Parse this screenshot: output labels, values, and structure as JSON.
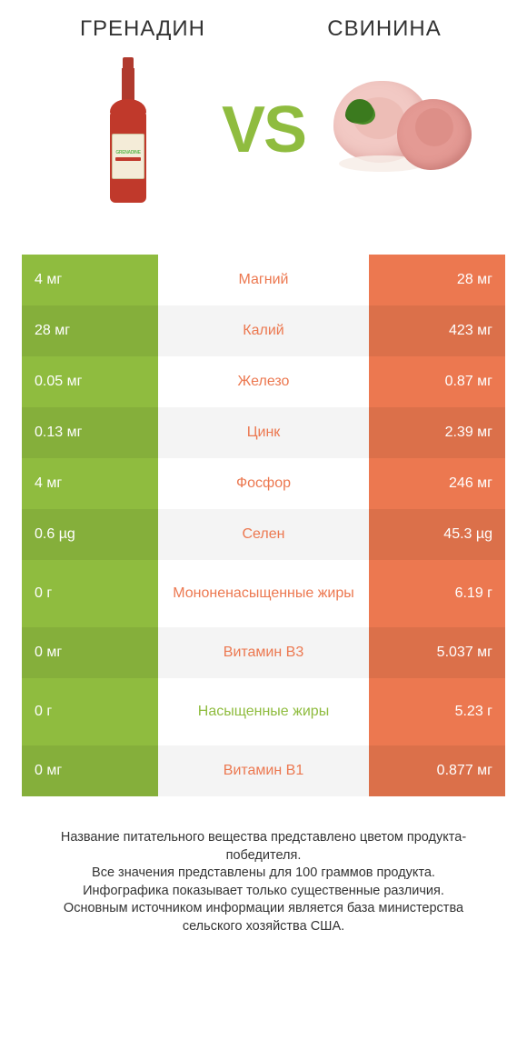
{
  "colors": {
    "green": "#8fbc3f",
    "orange": "#ec7850",
    "row_alt_darken": 0.93,
    "mid_bg": "#ffffff",
    "mid_bg_alt": "#f4f4f4",
    "vs": "#8fbc3f"
  },
  "header": {
    "left": "ГРЕНАДИН",
    "right": "СВИНИНА",
    "vs": "VS"
  },
  "fonts": {
    "header_size": 24,
    "vs_size": 72,
    "cell_size": 16,
    "footer_size": 14.5
  },
  "rows": [
    {
      "label": "Магний",
      "left": "4 мг",
      "right": "28 мг",
      "winner": "right"
    },
    {
      "label": "Калий",
      "left": "28 мг",
      "right": "423 мг",
      "winner": "right"
    },
    {
      "label": "Железо",
      "left": "0.05 мг",
      "right": "0.87 мг",
      "winner": "right"
    },
    {
      "label": "Цинк",
      "left": "0.13 мг",
      "right": "2.39 мг",
      "winner": "right"
    },
    {
      "label": "Фосфор",
      "left": "4 мг",
      "right": "246 мг",
      "winner": "right"
    },
    {
      "label": "Селен",
      "left": "0.6 µg",
      "right": "45.3 µg",
      "winner": "right"
    },
    {
      "label": "Мононенасыщенные жиры",
      "left": "0 г",
      "right": "6.19 г",
      "winner": "right",
      "tall": true
    },
    {
      "label": "Витамин B3",
      "left": "0 мг",
      "right": "5.037 мг",
      "winner": "right"
    },
    {
      "label": "Насыщенные жиры",
      "left": "0 г",
      "right": "5.23 г",
      "winner": "left",
      "tall": true
    },
    {
      "label": "Витамин B1",
      "left": "0 мг",
      "right": "0.877 мг",
      "winner": "right"
    }
  ],
  "footer_lines": [
    "Название питательного вещества представлено цветом продукта-победителя.",
    "Все значения представлены для 100 граммов продукта.",
    "Инфографика показывает только существенные различия.",
    "Основным источником информации является база министерства сельского хозяйства США."
  ]
}
